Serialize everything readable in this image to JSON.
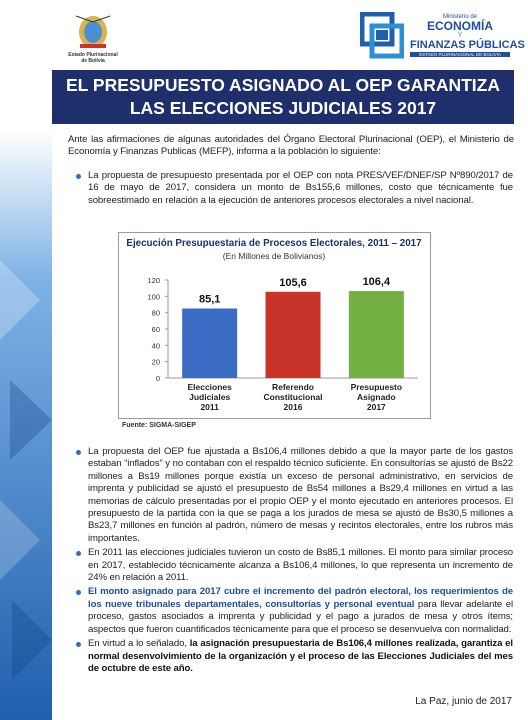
{
  "header": {
    "left_logo_lines": [
      "Estado Plurinacional",
      "de Bolivia"
    ],
    "ministry_prefix": "Ministerio de",
    "ministry_name_1": "ECONOMÍA",
    "ministry_conj": "Y",
    "ministry_name_2": "FINANZAS PÚBLICAS",
    "ministry_sub": "ESTADO PLURINACIONAL DE BOLIVIA"
  },
  "title_lines": [
    "EL PRESUPUESTO ASIGNADO AL OEP GARANTIZA",
    "LAS ELECCIONES JUDICIALES 2017"
  ],
  "intro": "Ante las afirmaciones de algunas autoridades del Órgano Electoral Plurinacional (OEP),  el Ministerio de Economía y Finanzas Publicas (MEFP), informa a la población lo siguiente:",
  "bullets": [
    {
      "runs": [
        {
          "text": "La propuesta de presupuesto presentada por el OEP con nota PRES/VEF/DNEF/SP Nº890/2017 de 16 de mayo de 2017, considera un monto de Bs155,6 millones, costo que técnicamente fue sobreestimado en relación a la ejecución de anteriores procesos electorales a nivel nacional.",
          "style": "plain"
        }
      ]
    },
    {
      "runs": [
        {
          "text": "La propuesta del OEP fue ajustada a Bs106,4 millones debido a que la mayor parte de los gastos estaban “inflados” y no contaban con el respaldo técnico suficiente. En consultorías se ajustó de Bs22 millones a Bs19 millones porque existía un exceso de personal administrativo, en servicios de imprenta y publicidad se ajustó el presupuesto de Bs54 millones a Bs29,4 millones en virtud a las memorias de cálculo presentadas por el propio OEP y el monto ejecutado en anteriores procesos. El presupuesto de la partida con la que se paga a los jurados de mesa se ajustó de Bs30,5 millones a Bs23,7 millones en función al padrón, número de mesas y recintos electorales, entre los rubros más importantes.",
          "style": "plain"
        }
      ]
    },
    {
      "runs": [
        {
          "text": "En 2011 las elecciones judiciales tuvieron un costo de Bs85,1 millones. El monto para similar proceso en 2017, establecido técnicamente alcanza a Bs106,4 millones, lo que representa un incremento de 24% en relación a 2011.",
          "style": "plain"
        }
      ]
    },
    {
      "runs": [
        {
          "text": "El monto asignado para 2017 cubre el incremento del padrón electoral, los requerimientos de los nueve tribunales departamentales, consultorías y personal eventual",
          "style": "accent"
        },
        {
          "text": " para llevar adelante el proceso,  gastos asociados a imprenta y publicidad y el pago a jurados de mesa y otros ítems; aspectos que fueron cuantificados técnicamente para que el proceso se desenvuelva con normalidad.",
          "style": "plain"
        }
      ]
    },
    {
      "runs": [
        {
          "text": "En virtud a lo señalado, ",
          "style": "plain"
        },
        {
          "text": "la asignación presupuestaria de Bs106,4 millones realizada, garantiza el normal desenvolvimiento de la organización y el proceso de las Elecciones Judiciales del mes de octubre de este año.",
          "style": "bold"
        }
      ]
    }
  ],
  "chart_data": {
    "type": "bar",
    "title": "Ejecución Presupuestaria de Procesos Electorales, 2011 – 2017",
    "subtitle": "(En Millones de Bolivianos)",
    "categories": [
      [
        "Elecciones",
        "Judiciales",
        "2011"
      ],
      [
        "Referendo",
        "Constitucional",
        "2016"
      ],
      [
        "Presupuesto",
        "Asignado",
        "2017"
      ]
    ],
    "values": [
      85.1,
      105.6,
      106.4
    ],
    "value_labels": [
      "85,1",
      "105,6",
      "106,4"
    ],
    "colors": [
      "#3b6cc4",
      "#c8332a",
      "#72b043"
    ],
    "ylim": [
      0,
      120
    ],
    "yticks": [
      0,
      20,
      40,
      60,
      80,
      100,
      120
    ],
    "grid": false,
    "source": "Fuente: SIGMA-SIGEP"
  },
  "footer_date": "La Paz, junio de 2017"
}
